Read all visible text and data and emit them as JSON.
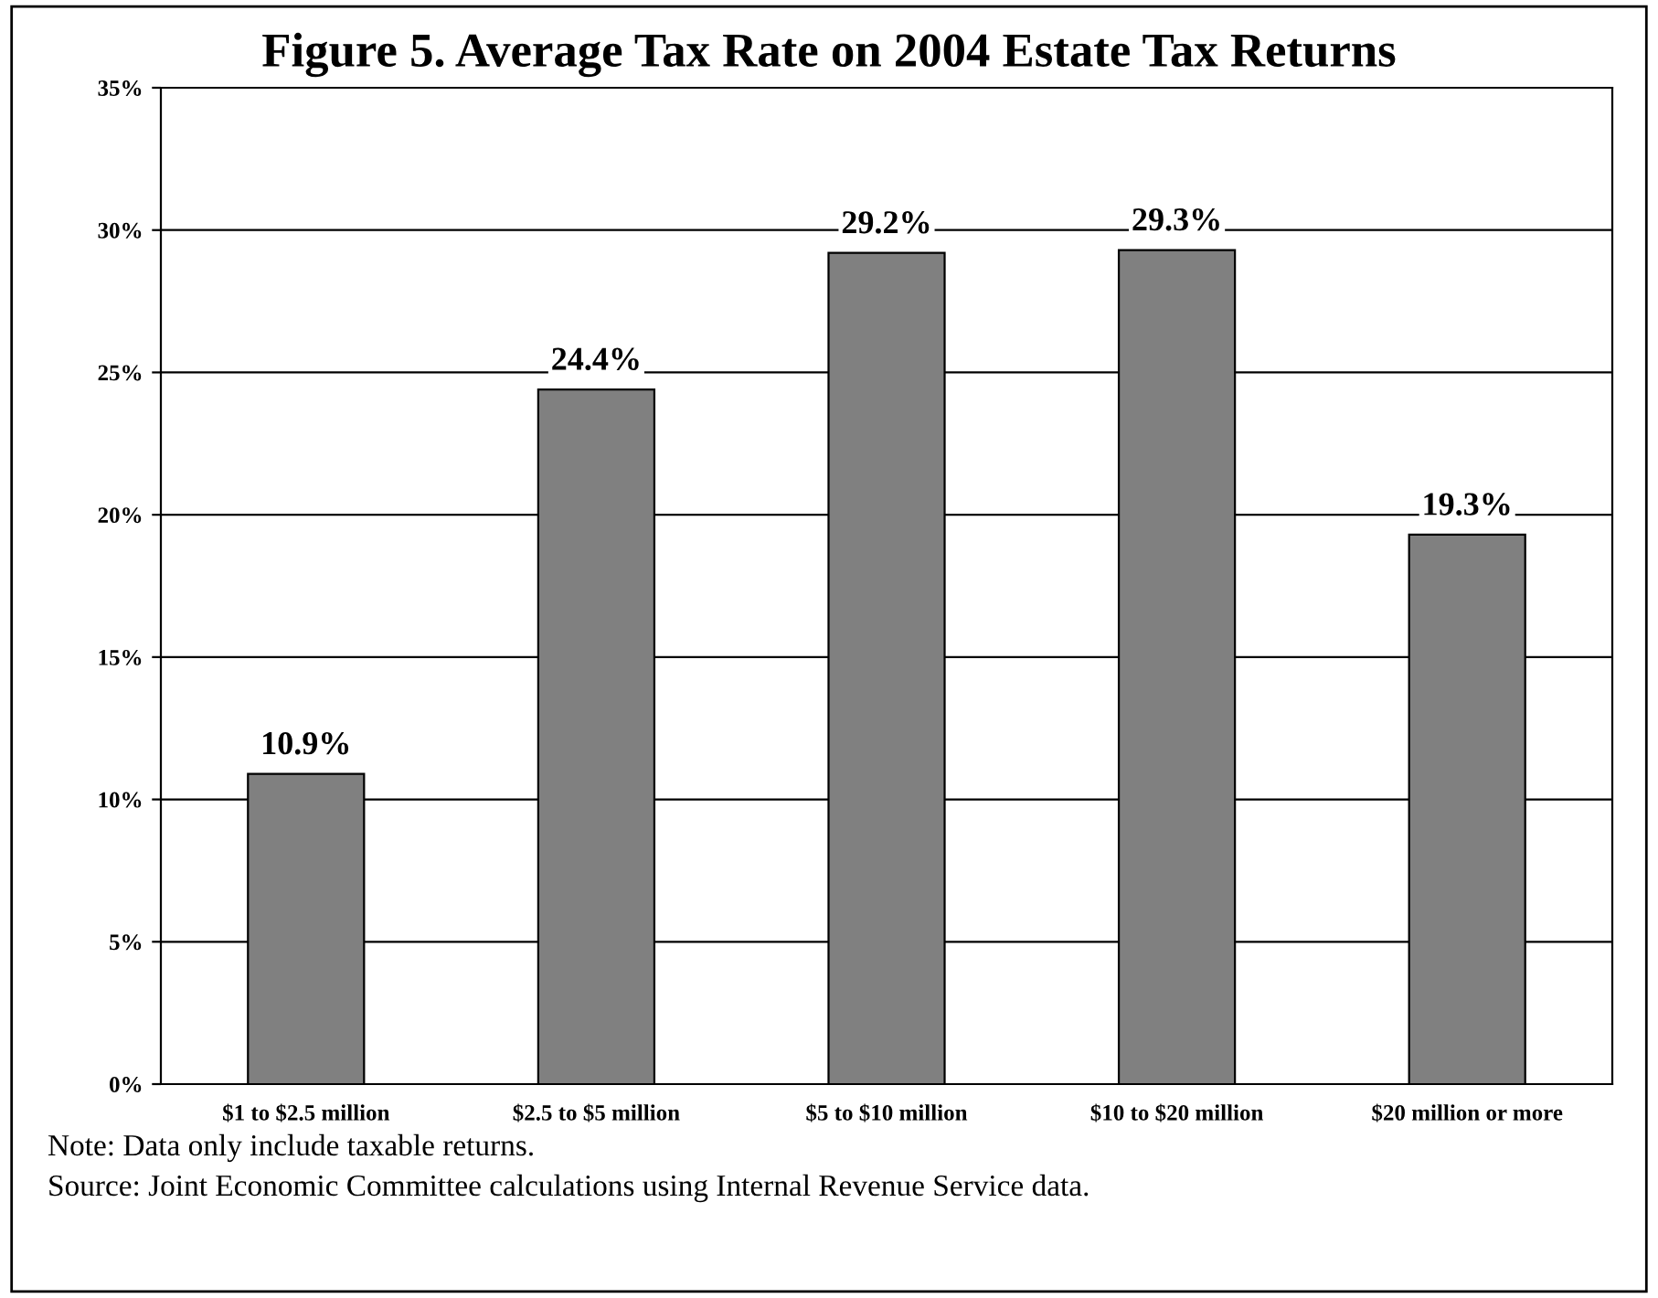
{
  "chart_data": {
    "type": "bar",
    "title": "Figure 5. Average Tax Rate on 2004 Estate Tax Returns",
    "categories": [
      "$1 to $2.5 million",
      "$2.5 to $5 million",
      "$5 to $10 million",
      "$10 to $20 million",
      "$20 million or more"
    ],
    "values": [
      10.9,
      24.4,
      29.2,
      29.3,
      19.3
    ],
    "value_labels": [
      "10.9%",
      "24.4%",
      "29.2%",
      "29.3%",
      "19.3%"
    ],
    "color": "#808080",
    "ylim": [
      0,
      35
    ],
    "yticks": [
      {
        "value": 0,
        "label": "0%"
      },
      {
        "value": 5,
        "label": "5%"
      },
      {
        "value": 10,
        "label": "10%"
      },
      {
        "value": 15,
        "label": "15%"
      },
      {
        "value": 20,
        "label": "20%"
      },
      {
        "value": 25,
        "label": "25%"
      },
      {
        "value": 30,
        "label": "30%"
      },
      {
        "value": 35,
        "label": "35%"
      }
    ],
    "grid": "y",
    "annotations": [
      "Note: Data only include taxable returns.",
      "Source: Joint Economic Committee calculations using Internal Revenue Service data."
    ]
  }
}
